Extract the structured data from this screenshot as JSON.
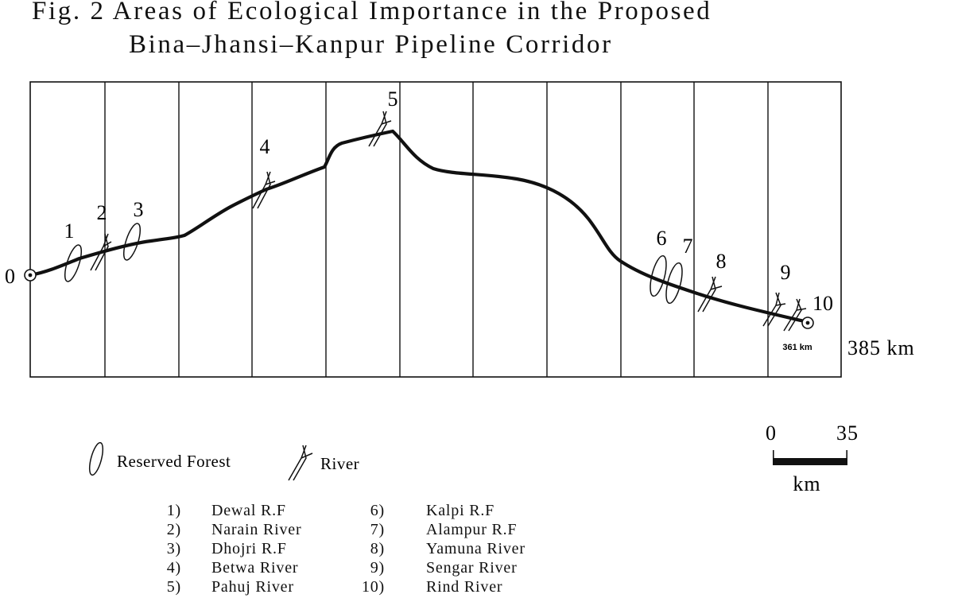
{
  "title": {
    "line1": "Fig. 2 Areas of Ecological Importance in the Proposed",
    "line2": "Bina–Jhansi–Kanpur Pipeline Corridor"
  },
  "route": {
    "start_label": "0",
    "end_label": "385 km",
    "terminal_distance": "361 km"
  },
  "markers": [
    {
      "id": "1",
      "type": "forest"
    },
    {
      "id": "2",
      "type": "river"
    },
    {
      "id": "3",
      "type": "forest"
    },
    {
      "id": "4",
      "type": "river"
    },
    {
      "id": "5",
      "type": "river"
    },
    {
      "id": "6",
      "type": "forest"
    },
    {
      "id": "7",
      "type": "forest"
    },
    {
      "id": "8",
      "type": "river"
    },
    {
      "id": "9",
      "type": "river"
    },
    {
      "id": "10",
      "type": "river"
    }
  ],
  "legend": {
    "forest": "Reserved Forest",
    "river": "River"
  },
  "scale": {
    "min": "0",
    "max": "35",
    "unit": "km"
  },
  "sites": [
    {
      "num": "1)",
      "name": "Dewal R.F"
    },
    {
      "num": "2)",
      "name": "Narain River"
    },
    {
      "num": "3)",
      "name": "Dhojri R.F"
    },
    {
      "num": "4)",
      "name": "Betwa River"
    },
    {
      "num": "5)",
      "name": "Pahuj River"
    },
    {
      "num": "6)",
      "name": "Kalpi R.F"
    },
    {
      "num": "7)",
      "name": "Alampur R.F"
    },
    {
      "num": "8)",
      "name": "Yamuna River"
    },
    {
      "num": "9)",
      "name": "Sengar River"
    },
    {
      "num": "10)",
      "name": "Rind River"
    }
  ]
}
